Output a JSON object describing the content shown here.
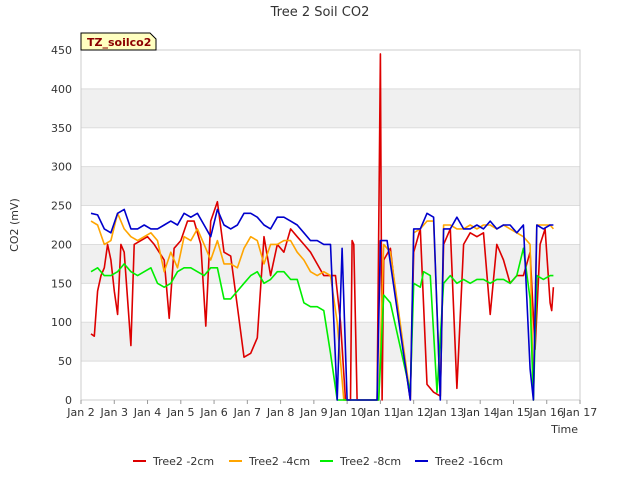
{
  "chart_data": {
    "type": "line",
    "title": "Tree 2 Soil CO2",
    "xlabel": "Time",
    "ylabel": "CO2 (mV)",
    "badge": "TZ_soilco2",
    "x_ticks": [
      "Jan 2",
      "Jan 3",
      "Jan 4",
      "Jan 5",
      "Jan 6",
      "Jan 7",
      "Jan 8",
      "Jan 9",
      "Jan 10",
      "Jan 11",
      "Jan 12",
      "Jan 13",
      "Jan 14",
      "Jan 15",
      "Jan 16",
      "Jan 17"
    ],
    "y_ticks": [
      0,
      50,
      100,
      150,
      200,
      250,
      300,
      350,
      400,
      450
    ],
    "xlim": [
      2,
      17
    ],
    "ylim": [
      0,
      450
    ],
    "grid": "horizontal bands",
    "legend_position": "bottom",
    "series": [
      {
        "name": "Tree2 -2cm",
        "color": "#dd0000",
        "points": [
          [
            2.3,
            85
          ],
          [
            2.4,
            82
          ],
          [
            2.5,
            140
          ],
          [
            2.6,
            160
          ],
          [
            2.7,
            170
          ],
          [
            2.8,
            200
          ],
          [
            2.9,
            180
          ],
          [
            3.0,
            140
          ],
          [
            3.1,
            110
          ],
          [
            3.2,
            200
          ],
          [
            3.3,
            190
          ],
          [
            3.5,
            70
          ],
          [
            3.6,
            200
          ],
          [
            3.8,
            205
          ],
          [
            4.0,
            210
          ],
          [
            4.2,
            200
          ],
          [
            4.5,
            180
          ],
          [
            4.65,
            105
          ],
          [
            4.8,
            195
          ],
          [
            5.0,
            205
          ],
          [
            5.2,
            230
          ],
          [
            5.4,
            230
          ],
          [
            5.6,
            200
          ],
          [
            5.75,
            95
          ],
          [
            5.9,
            230
          ],
          [
            6.1,
            255
          ],
          [
            6.3,
            190
          ],
          [
            6.5,
            185
          ],
          [
            6.7,
            120
          ],
          [
            6.9,
            55
          ],
          [
            7.1,
            60
          ],
          [
            7.3,
            80
          ],
          [
            7.5,
            210
          ],
          [
            7.7,
            160
          ],
          [
            7.9,
            200
          ],
          [
            8.1,
            190
          ],
          [
            8.3,
            220
          ],
          [
            8.5,
            210
          ],
          [
            8.7,
            200
          ],
          [
            8.9,
            190
          ],
          [
            9.3,
            160
          ],
          [
            9.5,
            160
          ],
          [
            9.65,
            160
          ],
          [
            9.8,
            100
          ],
          [
            9.95,
            0
          ],
          [
            10.0,
            0
          ],
          [
            10.1,
            0
          ],
          [
            10.15,
            205
          ],
          [
            10.2,
            200
          ],
          [
            10.3,
            0
          ],
          [
            10.9,
            0
          ],
          [
            11.0,
            445
          ],
          [
            11.05,
            0
          ],
          [
            11.1,
            180
          ],
          [
            11.3,
            195
          ],
          [
            11.5,
            120
          ],
          [
            11.7,
            60
          ],
          [
            11.9,
            0
          ],
          [
            12.0,
            190
          ],
          [
            12.2,
            220
          ],
          [
            12.4,
            20
          ],
          [
            12.6,
            10
          ],
          [
            12.8,
            5
          ],
          [
            12.9,
            200
          ],
          [
            13.1,
            220
          ],
          [
            13.3,
            15
          ],
          [
            13.5,
            200
          ],
          [
            13.7,
            215
          ],
          [
            13.9,
            210
          ],
          [
            14.1,
            215
          ],
          [
            14.3,
            110
          ],
          [
            14.5,
            200
          ],
          [
            14.7,
            180
          ],
          [
            14.9,
            150
          ],
          [
            15.1,
            160
          ],
          [
            15.3,
            160
          ],
          [
            15.5,
            190
          ],
          [
            15.65,
            65
          ],
          [
            15.8,
            200
          ],
          [
            15.95,
            220
          ],
          [
            16.1,
            125
          ],
          [
            16.15,
            115
          ],
          [
            16.2,
            145
          ]
        ]
      },
      {
        "name": "Tree2 -4cm",
        "color": "#ffa500",
        "points": [
          [
            2.3,
            230
          ],
          [
            2.5,
            225
          ],
          [
            2.7,
            200
          ],
          [
            2.9,
            205
          ],
          [
            3.1,
            240
          ],
          [
            3.3,
            220
          ],
          [
            3.5,
            210
          ],
          [
            3.7,
            205
          ],
          [
            3.9,
            210
          ],
          [
            4.1,
            215
          ],
          [
            4.3,
            205
          ],
          [
            4.5,
            165
          ],
          [
            4.7,
            190
          ],
          [
            4.9,
            170
          ],
          [
            5.1,
            210
          ],
          [
            5.3,
            205
          ],
          [
            5.5,
            220
          ],
          [
            5.7,
            200
          ],
          [
            5.9,
            180
          ],
          [
            6.1,
            205
          ],
          [
            6.3,
            175
          ],
          [
            6.5,
            175
          ],
          [
            6.7,
            170
          ],
          [
            6.9,
            195
          ],
          [
            7.1,
            210
          ],
          [
            7.3,
            205
          ],
          [
            7.5,
            175
          ],
          [
            7.7,
            200
          ],
          [
            7.9,
            200
          ],
          [
            8.1,
            205
          ],
          [
            8.3,
            205
          ],
          [
            8.5,
            190
          ],
          [
            8.7,
            180
          ],
          [
            8.9,
            165
          ],
          [
            9.1,
            160
          ],
          [
            9.3,
            165
          ],
          [
            9.5,
            160
          ],
          [
            9.7,
            100
          ],
          [
            9.9,
            0
          ],
          [
            10.3,
            0
          ],
          [
            10.95,
            0
          ],
          [
            11.1,
            200
          ],
          [
            11.3,
            190
          ],
          [
            11.9,
            5
          ],
          [
            12.0,
            215
          ],
          [
            12.2,
            220
          ],
          [
            12.4,
            230
          ],
          [
            12.6,
            230
          ],
          [
            12.8,
            5
          ],
          [
            12.9,
            225
          ],
          [
            13.1,
            225
          ],
          [
            13.3,
            220
          ],
          [
            13.5,
            220
          ],
          [
            13.7,
            225
          ],
          [
            13.9,
            220
          ],
          [
            14.1,
            225
          ],
          [
            14.3,
            225
          ],
          [
            14.5,
            220
          ],
          [
            14.7,
            225
          ],
          [
            14.9,
            220
          ],
          [
            15.1,
            215
          ],
          [
            15.3,
            210
          ],
          [
            15.5,
            200
          ],
          [
            15.6,
            0
          ],
          [
            15.7,
            225
          ],
          [
            15.9,
            225
          ],
          [
            16.1,
            225
          ],
          [
            16.2,
            220
          ]
        ]
      },
      {
        "name": "Tree2 -8cm",
        "color": "#00ee00",
        "points": [
          [
            2.3,
            165
          ],
          [
            2.5,
            170
          ],
          [
            2.7,
            160
          ],
          [
            2.9,
            160
          ],
          [
            3.1,
            165
          ],
          [
            3.3,
            175
          ],
          [
            3.5,
            165
          ],
          [
            3.7,
            160
          ],
          [
            3.9,
            165
          ],
          [
            4.1,
            170
          ],
          [
            4.3,
            150
          ],
          [
            4.5,
            145
          ],
          [
            4.7,
            150
          ],
          [
            4.9,
            165
          ],
          [
            5.1,
            170
          ],
          [
            5.3,
            170
          ],
          [
            5.5,
            165
          ],
          [
            5.7,
            160
          ],
          [
            5.9,
            170
          ],
          [
            6.1,
            170
          ],
          [
            6.3,
            130
          ],
          [
            6.5,
            130
          ],
          [
            6.7,
            140
          ],
          [
            6.9,
            150
          ],
          [
            7.1,
            160
          ],
          [
            7.3,
            165
          ],
          [
            7.5,
            150
          ],
          [
            7.7,
            155
          ],
          [
            7.9,
            165
          ],
          [
            8.1,
            165
          ],
          [
            8.3,
            155
          ],
          [
            8.5,
            155
          ],
          [
            8.7,
            125
          ],
          [
            8.9,
            120
          ],
          [
            9.1,
            120
          ],
          [
            9.3,
            115
          ],
          [
            9.5,
            60
          ],
          [
            9.7,
            0
          ],
          [
            10.3,
            0
          ],
          [
            10.95,
            0
          ],
          [
            11.1,
            135
          ],
          [
            11.3,
            125
          ],
          [
            11.9,
            10
          ],
          [
            12.0,
            150
          ],
          [
            12.2,
            145
          ],
          [
            12.3,
            165
          ],
          [
            12.5,
            160
          ],
          [
            12.7,
            10
          ],
          [
            12.9,
            150
          ],
          [
            13.1,
            160
          ],
          [
            13.3,
            150
          ],
          [
            13.5,
            155
          ],
          [
            13.7,
            150
          ],
          [
            13.9,
            155
          ],
          [
            14.1,
            155
          ],
          [
            14.3,
            150
          ],
          [
            14.5,
            155
          ],
          [
            14.7,
            155
          ],
          [
            14.9,
            150
          ],
          [
            15.1,
            160
          ],
          [
            15.3,
            195
          ],
          [
            15.5,
            130
          ],
          [
            15.6,
            0
          ],
          [
            15.7,
            160
          ],
          [
            15.9,
            155
          ],
          [
            16.1,
            160
          ],
          [
            16.2,
            160
          ]
        ]
      },
      {
        "name": "Tree2 -16cm",
        "color": "#0000cc",
        "points": [
          [
            2.3,
            240
          ],
          [
            2.5,
            238
          ],
          [
            2.7,
            220
          ],
          [
            2.9,
            215
          ],
          [
            3.1,
            240
          ],
          [
            3.3,
            245
          ],
          [
            3.5,
            220
          ],
          [
            3.7,
            220
          ],
          [
            3.9,
            225
          ],
          [
            4.1,
            220
          ],
          [
            4.3,
            220
          ],
          [
            4.5,
            225
          ],
          [
            4.7,
            230
          ],
          [
            4.9,
            225
          ],
          [
            5.1,
            240
          ],
          [
            5.3,
            235
          ],
          [
            5.5,
            240
          ],
          [
            5.7,
            225
          ],
          [
            5.9,
            210
          ],
          [
            6.1,
            245
          ],
          [
            6.3,
            225
          ],
          [
            6.5,
            220
          ],
          [
            6.7,
            225
          ],
          [
            6.9,
            240
          ],
          [
            7.1,
            240
          ],
          [
            7.3,
            235
          ],
          [
            7.5,
            225
          ],
          [
            7.7,
            220
          ],
          [
            7.9,
            235
          ],
          [
            8.1,
            235
          ],
          [
            8.3,
            230
          ],
          [
            8.5,
            225
          ],
          [
            8.7,
            215
          ],
          [
            8.9,
            205
          ],
          [
            9.1,
            205
          ],
          [
            9.3,
            200
          ],
          [
            9.5,
            200
          ],
          [
            9.7,
            0
          ],
          [
            9.85,
            195
          ],
          [
            10.0,
            0
          ],
          [
            10.2,
            0
          ],
          [
            10.9,
            0
          ],
          [
            11.0,
            205
          ],
          [
            11.2,
            205
          ],
          [
            11.9,
            0
          ],
          [
            12.0,
            220
          ],
          [
            12.2,
            220
          ],
          [
            12.4,
            240
          ],
          [
            12.6,
            235
          ],
          [
            12.8,
            0
          ],
          [
            12.9,
            220
          ],
          [
            13.1,
            220
          ],
          [
            13.3,
            235
          ],
          [
            13.5,
            220
          ],
          [
            13.7,
            220
          ],
          [
            13.9,
            225
          ],
          [
            14.1,
            220
          ],
          [
            14.3,
            230
          ],
          [
            14.5,
            220
          ],
          [
            14.7,
            225
          ],
          [
            14.9,
            225
          ],
          [
            15.1,
            215
          ],
          [
            15.3,
            225
          ],
          [
            15.5,
            40
          ],
          [
            15.6,
            0
          ],
          [
            15.7,
            225
          ],
          [
            15.9,
            220
          ],
          [
            16.1,
            225
          ],
          [
            16.2,
            225
          ]
        ]
      }
    ]
  }
}
